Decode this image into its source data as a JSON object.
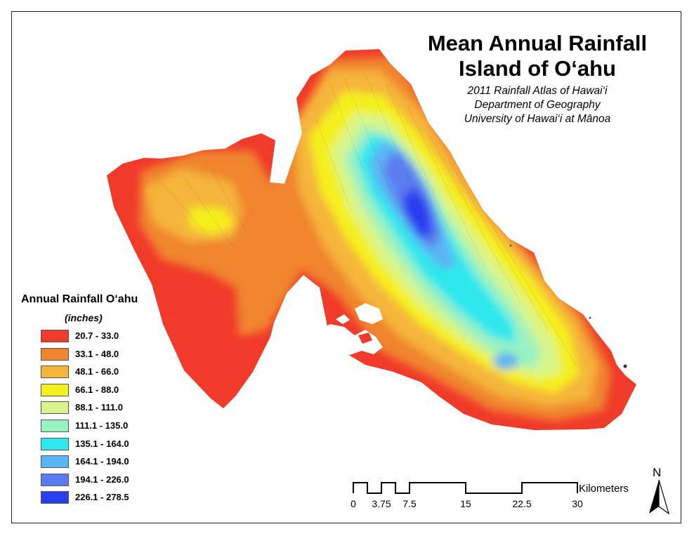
{
  "map": {
    "title_line1": "Mean Annual Rainfall",
    "title_line2": "Island of O‘ahu",
    "subtitle_lines": [
      "2011 Rainfall Atlas of Hawai‘i",
      "Department of Geography",
      "University of Hawai‘i at Mānoa"
    ],
    "legend": {
      "title": "Annual Rainfall O‘ahu",
      "units": "(inches)",
      "classes": [
        {
          "label": "20.7 - 33.0",
          "color": "#f03a2a"
        },
        {
          "label": "33.1 - 48.0",
          "color": "#f0852e"
        },
        {
          "label": "48.1 - 66.0",
          "color": "#f5b53a"
        },
        {
          "label": "66.1 - 88.0",
          "color": "#f5f01e"
        },
        {
          "label": "88.1 - 111.0",
          "color": "#d7f58a"
        },
        {
          "label": "111.1 - 135.0",
          "color": "#9af2c2"
        },
        {
          "label": "135.1 - 164.0",
          "color": "#2fe8ee"
        },
        {
          "label": "164.1 - 194.0",
          "color": "#5bb4f3"
        },
        {
          "label": "194.1 - 226.0",
          "color": "#5b7cf0"
        },
        {
          "label": "226.1 - 278.5",
          "color": "#2a3ef0"
        }
      ]
    },
    "scale_bar": {
      "unit": "Kilometers",
      "ticks": [
        "0",
        "3.75",
        "7.5",
        "15",
        "22.5",
        "30"
      ]
    },
    "north_arrow": {
      "letter": "N",
      "icon": "north-arrow-icon"
    }
  }
}
